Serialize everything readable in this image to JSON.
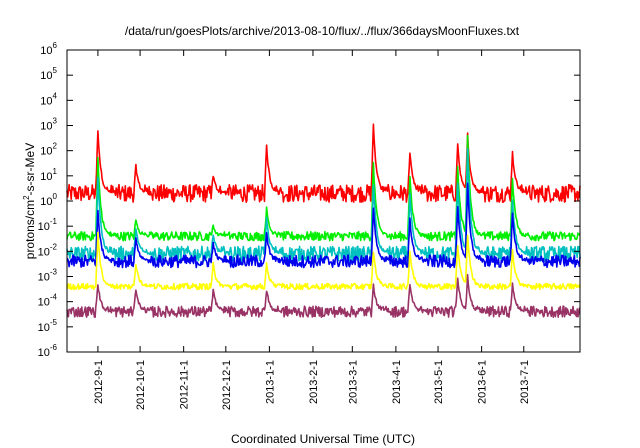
{
  "chart_data": {
    "type": "line",
    "title": "/data/run/goesPlots/archive/2013-08-10/flux/../flux/366daysMoonFluxes.txt",
    "xlabel": "Coordinated Universal Time (UTC)",
    "ylabel_parts": [
      "protons/cm",
      "2",
      "-s-sr-MeV"
    ],
    "yscale": "log",
    "ylim": [
      1e-06,
      1000000.0
    ],
    "y_ticks": [
      {
        "base": "10",
        "exp": "-6",
        "value": 1e-06
      },
      {
        "base": "10",
        "exp": "-5",
        "value": 1e-05
      },
      {
        "base": "10",
        "exp": "-4",
        "value": 0.0001
      },
      {
        "base": "10",
        "exp": "-3",
        "value": 0.001
      },
      {
        "base": "10",
        "exp": "-2",
        "value": 0.01
      },
      {
        "base": "10",
        "exp": "-1",
        "value": 0.1
      },
      {
        "base": "10",
        "exp": "0",
        "value": 1
      },
      {
        "base": "10",
        "exp": "1",
        "value": 10
      },
      {
        "base": "10",
        "exp": "2",
        "value": 100
      },
      {
        "base": "10",
        "exp": "3",
        "value": 1000
      },
      {
        "base": "10",
        "exp": "4",
        "value": 10000
      },
      {
        "base": "10",
        "exp": "5",
        "value": 100000
      },
      {
        "base": "10",
        "exp": "6",
        "value": 1000000
      }
    ],
    "xlim": [
      "2012-08-10",
      "2013-08-10"
    ],
    "x_ticks": [
      {
        "label": "2012-9-1",
        "date": "2012-09-01"
      },
      {
        "label": "2012-10-1",
        "date": "2012-10-01"
      },
      {
        "label": "2012-11-1",
        "date": "2012-11-01"
      },
      {
        "label": "2012-12-1",
        "date": "2012-12-01"
      },
      {
        "label": "2013-1-1",
        "date": "2013-01-01"
      },
      {
        "label": "2013-2-1",
        "date": "2013-02-01"
      },
      {
        "label": "2013-3-1",
        "date": "2013-03-01"
      },
      {
        "label": "2013-4-1",
        "date": "2013-04-01"
      },
      {
        "label": "2013-5-1",
        "date": "2013-05-01"
      },
      {
        "label": "2013-6-1",
        "date": "2013-06-01"
      },
      {
        "label": "2013-7-1",
        "date": "2013-07-01"
      }
    ],
    "grid": false,
    "legend": "none",
    "events": [
      {
        "date": "2012-09-01",
        "peak": [
          700,
          50,
          10,
          0.4,
          0.05,
          0.0005
        ]
      },
      {
        "date": "2012-09-28",
        "peak": [
          25,
          0.2,
          0.08,
          0.03,
          0.003,
          0.0003
        ]
      },
      {
        "date": "2012-11-22",
        "peak": [
          10,
          0.1,
          0.05,
          0.02,
          0.003,
          0.0003
        ]
      },
      {
        "date": "2012-12-30",
        "peak": [
          150,
          0.5,
          0.2,
          0.05,
          0.003,
          0.0003
        ]
      },
      {
        "date": "2013-03-16",
        "peak": [
          1200,
          30,
          5,
          0.5,
          0.01,
          0.0005
        ]
      },
      {
        "date": "2013-04-11",
        "peak": [
          80,
          10,
          2,
          0.2,
          0.01,
          0.0005
        ]
      },
      {
        "date": "2013-05-15",
        "peak": [
          200,
          20,
          5,
          0.5,
          0.02,
          0.001
        ]
      },
      {
        "date": "2013-05-22",
        "peak": [
          450,
          400,
          100,
          5,
          0.05,
          0.001
        ]
      },
      {
        "date": "2013-06-23",
        "peak": [
          80,
          8,
          1,
          0.3,
          0.01,
          0.0005
        ]
      }
    ],
    "series": [
      {
        "color": "#ff0000",
        "baseline": 2.0,
        "noise_decades": 0.35
      },
      {
        "color": "#00ee00",
        "baseline": 0.04,
        "noise_decades": 0.18
      },
      {
        "color": "#00c0c0",
        "baseline": 0.008,
        "noise_decades": 0.3
      },
      {
        "color": "#0000ee",
        "baseline": 0.004,
        "noise_decades": 0.25
      },
      {
        "color": "#ffff00",
        "baseline": 0.0004,
        "noise_decades": 0.12
      },
      {
        "color": "#993366",
        "baseline": 4e-05,
        "noise_decades": 0.22
      }
    ]
  }
}
